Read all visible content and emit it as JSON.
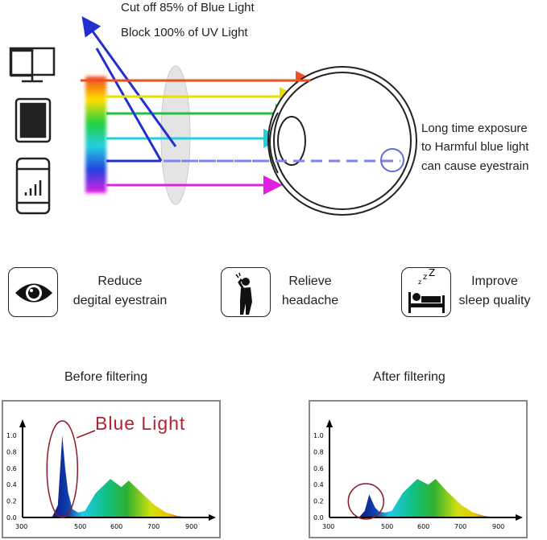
{
  "top": {
    "filter_line1": "Cut off 85% of Blue Light",
    "filter_line2": "Block 100% of UV Light",
    "warning": [
      "Long time exposure",
      "to Harmful blue light",
      "can cause eyestrain"
    ],
    "device_icons": [
      "monitor-icon",
      "tablet-icon",
      "smartphone-icon"
    ]
  },
  "features": [
    {
      "icon": "eye-icon",
      "line1": "Reduce",
      "line2": "degital eyestrain"
    },
    {
      "icon": "headache-person-icon",
      "line1": "Relieve",
      "line2": "headache"
    },
    {
      "icon": "sleeping-bed-icon",
      "line1": "Improve",
      "line2": "sleep quality"
    }
  ],
  "chart_data": [
    {
      "type": "area",
      "title": "Before filtering",
      "annotation": "Blue Light",
      "annotation_color": "#b22234",
      "x_ticks": [
        300,
        500,
        600,
        700,
        900
      ],
      "y_ticks": [
        "0.0",
        "0.2",
        "0.4",
        "0.6",
        "0.8",
        "1.0"
      ],
      "ylim": [
        0,
        1.0
      ],
      "x": [
        400,
        420,
        435,
        445,
        455,
        470,
        490,
        510,
        540,
        580,
        610,
        630,
        660,
        700,
        760,
        820,
        880
      ],
      "y": [
        0,
        0.15,
        1.0,
        0.6,
        0.3,
        0.1,
        0.06,
        0.08,
        0.3,
        0.47,
        0.37,
        0.45,
        0.32,
        0.15,
        0.06,
        0.02,
        0
      ]
    },
    {
      "type": "area",
      "title": "After filtering",
      "x_ticks": [
        300,
        500,
        600,
        700,
        900
      ],
      "y_ticks": [
        "0.0",
        "0.2",
        "0.4",
        "0.6",
        "0.8",
        "1.0"
      ],
      "ylim": [
        0,
        1.0
      ],
      "x": [
        400,
        420,
        435,
        445,
        455,
        470,
        490,
        510,
        540,
        580,
        610,
        630,
        660,
        700,
        760,
        820,
        880
      ],
      "y": [
        0,
        0.08,
        0.28,
        0.2,
        0.12,
        0.07,
        0.06,
        0.08,
        0.3,
        0.47,
        0.4,
        0.47,
        0.32,
        0.15,
        0.06,
        0.02,
        0
      ]
    }
  ]
}
